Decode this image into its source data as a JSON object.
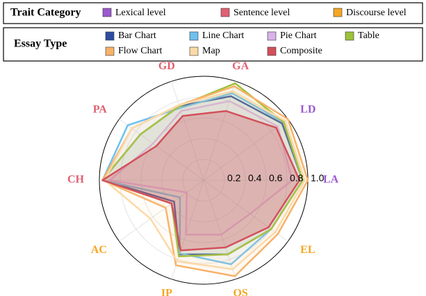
{
  "chart_data": {
    "type": "radar",
    "categories": [
      "LA",
      "LD",
      "GA",
      "GD",
      "PA",
      "CH",
      "AC",
      "IP",
      "OS",
      "EL"
    ],
    "category_colors": [
      "#9b59d0",
      "#9b59d0",
      "#e06070",
      "#e06070",
      "#e06070",
      "#e06070",
      "#f5a623",
      "#f5a623",
      "#f5a623",
      "#f5a623"
    ],
    "rlim": [
      0,
      1
    ],
    "rticks": [
      0.2,
      0.4,
      0.6,
      0.8,
      {
        "value": 1,
        "label": "1.0"
      }
    ],
    "trait_legend": {
      "title": "Trait Category",
      "items": [
        {
          "name": "Lexical level",
          "color": "#9b59d0"
        },
        {
          "name": "Sentence level",
          "color": "#e06070"
        },
        {
          "name": "Discourse level",
          "color": "#f5a623"
        }
      ]
    },
    "series_legend_title": "Essay Type",
    "series": [
      {
        "name": "Bar Chart",
        "color": "#2e4da0",
        "values": [
          0.95,
          0.93,
          0.85,
          0.75,
          0.75,
          0.97,
          0.35,
          0.75,
          0.75,
          0.8
        ]
      },
      {
        "name": "Line Chart",
        "color": "#6ec1ee",
        "values": [
          0.95,
          0.95,
          0.88,
          0.73,
          0.9,
          0.97,
          0.28,
          0.74,
          0.85,
          0.8
        ]
      },
      {
        "name": "Pie Chart",
        "color": "#d8b4ea",
        "values": [
          0.85,
          0.88,
          0.8,
          0.7,
          0.6,
          0.9,
          0.2,
          0.55,
          0.55,
          0.55
        ]
      },
      {
        "name": "Table",
        "color": "#9cc23a",
        "values": [
          0.95,
          0.95,
          0.98,
          0.75,
          0.75,
          0.97,
          0.38,
          0.77,
          0.75,
          0.8
        ]
      },
      {
        "name": "Flow Chart",
        "color": "#f7b26a",
        "values": [
          1.0,
          1.0,
          0.95,
          0.76,
          0.85,
          0.97,
          0.45,
          0.86,
          0.97,
          0.88
        ]
      },
      {
        "name": "Map",
        "color": "#fcd9a8",
        "values": [
          0.97,
          0.97,
          0.9,
          0.76,
          0.85,
          0.95,
          0.63,
          0.82,
          0.9,
          0.85
        ]
      },
      {
        "name": "Composite",
        "color": "#d2505a",
        "values": [
          0.92,
          0.86,
          0.7,
          0.65,
          0.56,
          0.97,
          0.38,
          0.71,
          0.68,
          0.77
        ]
      }
    ]
  }
}
